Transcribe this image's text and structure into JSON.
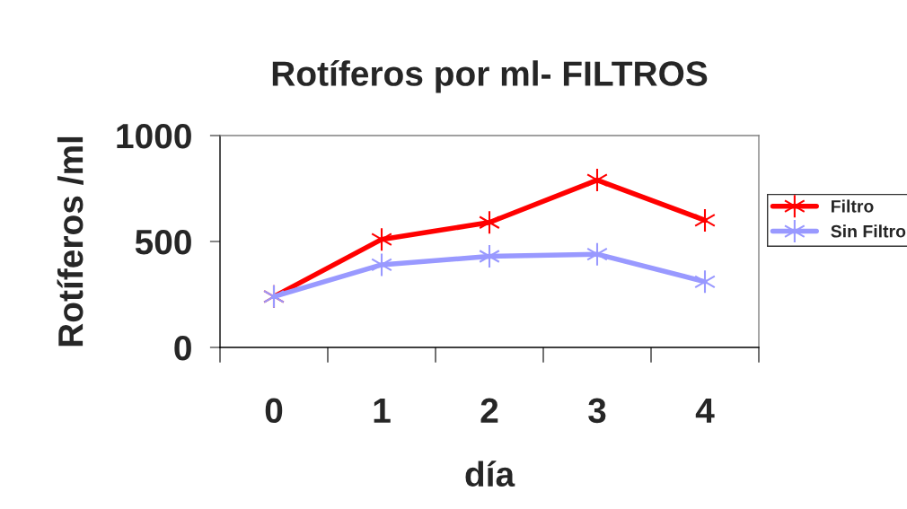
{
  "chart_data": {
    "type": "line",
    "title": "Rotíferos por ml- FILTROS",
    "xlabel": "día",
    "ylabel": "Rotíferos /ml",
    "categories": [
      "0",
      "1",
      "2",
      "3",
      "4"
    ],
    "series": [
      {
        "name": "Filtro",
        "color": "#ff0000",
        "values": [
          240,
          510,
          590,
          790,
          600
        ]
      },
      {
        "name": "Sin Filtro",
        "color": "#9999ff",
        "values": [
          240,
          390,
          430,
          440,
          310
        ]
      }
    ],
    "ylim": [
      0,
      1000
    ],
    "yticks": [
      0,
      500,
      1000
    ],
    "grid": false,
    "legend": "right",
    "marker": "cross",
    "line_style": "solid"
  }
}
